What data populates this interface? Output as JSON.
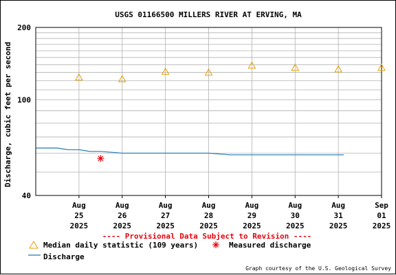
{
  "title": "USGS 01166500 MILLERS RIVER AT ERVING, MA",
  "ylabel": "Discharge, cubic feet per second",
  "provisional_note": "---- Provisional Data Subject to Revision ----",
  "credit": "Graph courtesy of the U.S. Geological Survey",
  "colors": {
    "median": "#e69f00",
    "measured": "#e8000b",
    "discharge": "#1f77b4",
    "provisional": "#e8000b",
    "grid": "#b0b0b0"
  },
  "legend": {
    "median": "Median daily statistic (109 years)",
    "measured": "Measured discharge",
    "discharge": "Discharge"
  },
  "chart_data": {
    "type": "line",
    "title": "USGS 01166500 MILLERS RIVER AT ERVING, MA",
    "ylabel": "Discharge, cubic feet per second",
    "yscale": "log",
    "ylim": [
      40,
      200
    ],
    "y_ticks": [
      40,
      100,
      200
    ],
    "xlim": [
      "2025-08-24 12:00",
      "2025-09-01 12:00"
    ],
    "x_ticks": [
      {
        "date": "2025-08-25",
        "label": [
          "Aug",
          "25",
          "2025"
        ]
      },
      {
        "date": "2025-08-26",
        "label": [
          "Aug",
          "26",
          "2025"
        ]
      },
      {
        "date": "2025-08-27",
        "label": [
          "Aug",
          "27",
          "2025"
        ]
      },
      {
        "date": "2025-08-28",
        "label": [
          "Aug",
          "28",
          "2025"
        ]
      },
      {
        "date": "2025-08-29",
        "label": [
          "Aug",
          "29",
          "2025"
        ]
      },
      {
        "date": "2025-08-30",
        "label": [
          "Aug",
          "30",
          "2025"
        ]
      },
      {
        "date": "2025-08-31",
        "label": [
          "Aug",
          "31",
          "2025"
        ]
      },
      {
        "date": "2025-09-01",
        "label": [
          "Sep",
          "01",
          "2025"
        ]
      }
    ],
    "grid": true,
    "series": [
      {
        "name": "Median daily statistic (109 years)",
        "marker": "triangle",
        "points": [
          {
            "x": "2025-08-25",
            "y": 124
          },
          {
            "x": "2025-08-26",
            "y": 122
          },
          {
            "x": "2025-08-27",
            "y": 131
          },
          {
            "x": "2025-08-28",
            "y": 130
          },
          {
            "x": "2025-08-29",
            "y": 139
          },
          {
            "x": "2025-08-30",
            "y": 136
          },
          {
            "x": "2025-08-31",
            "y": 134
          },
          {
            "x": "2025-09-01",
            "y": 136
          }
        ]
      },
      {
        "name": "Measured discharge",
        "marker": "asterisk",
        "points": [
          {
            "x": "2025-08-26 00:00",
            "y": 57
          }
        ]
      },
      {
        "name": "Discharge",
        "marker": "line",
        "points": [
          {
            "x": "2025-08-24 12:00",
            "y": 63
          },
          {
            "x": "2025-08-25 00:00",
            "y": 63
          },
          {
            "x": "2025-08-25 06:00",
            "y": 62
          },
          {
            "x": "2025-08-25 12:00",
            "y": 62
          },
          {
            "x": "2025-08-25 18:00",
            "y": 61
          },
          {
            "x": "2025-08-26 00:00",
            "y": 61
          },
          {
            "x": "2025-08-26 12:00",
            "y": 60
          },
          {
            "x": "2025-08-26 18:00",
            "y": 60
          },
          {
            "x": "2025-08-27 00:00",
            "y": 60
          },
          {
            "x": "2025-08-27 12:00",
            "y": 60
          },
          {
            "x": "2025-08-28 00:00",
            "y": 60
          },
          {
            "x": "2025-08-28 12:00",
            "y": 60
          },
          {
            "x": "2025-08-29 00:00",
            "y": 59
          },
          {
            "x": "2025-08-29 12:00",
            "y": 59
          },
          {
            "x": "2025-08-30 00:00",
            "y": 59
          },
          {
            "x": "2025-08-30 12:00",
            "y": 59
          },
          {
            "x": "2025-08-31 00:00",
            "y": 59
          },
          {
            "x": "2025-08-31 12:00",
            "y": 59
          },
          {
            "x": "2025-08-31 15:00",
            "y": 59
          }
        ]
      }
    ]
  }
}
